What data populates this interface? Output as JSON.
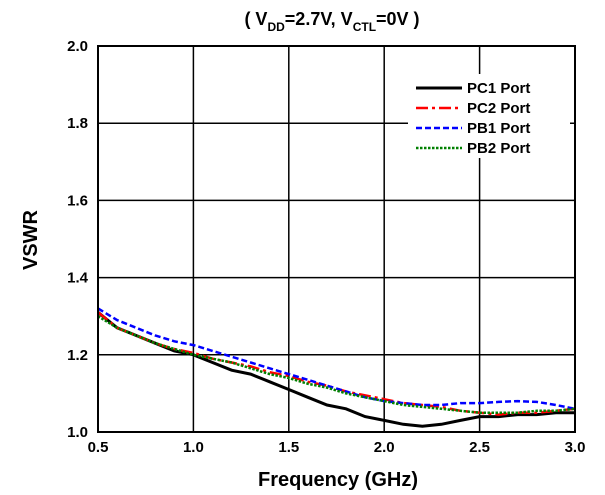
{
  "chart_data": {
    "type": "line",
    "title": {
      "prefix": "( V",
      "sub1": "DD",
      "mid": "=2.7V, V",
      "sub2": "CTL",
      "suffix": "=0V )"
    },
    "xlabel": "Frequency (GHz)",
    "ylabel": "VSWR",
    "xlim": [
      0.5,
      3.0
    ],
    "ylim": [
      1.0,
      2.0
    ],
    "xticks": [
      "0.5",
      "1.0",
      "1.5",
      "2.0",
      "2.5",
      "3.0"
    ],
    "yticks": [
      "1.0",
      "1.2",
      "1.4",
      "1.6",
      "1.8",
      "2.0"
    ],
    "grid": true,
    "legend_position": "top-right",
    "series": [
      {
        "name": "PC1 Port",
        "color": "#000000",
        "style": "solid",
        "x": [
          0.5,
          0.6,
          0.7,
          0.8,
          0.9,
          1.0,
          1.1,
          1.2,
          1.3,
          1.4,
          1.5,
          1.6,
          1.7,
          1.8,
          1.9,
          2.0,
          2.1,
          2.2,
          2.3,
          2.4,
          2.5,
          2.6,
          2.7,
          2.8,
          2.9,
          3.0
        ],
        "y": [
          1.31,
          1.27,
          1.25,
          1.23,
          1.21,
          1.2,
          1.18,
          1.16,
          1.15,
          1.13,
          1.11,
          1.09,
          1.07,
          1.06,
          1.04,
          1.03,
          1.02,
          1.015,
          1.02,
          1.03,
          1.04,
          1.04,
          1.045,
          1.045,
          1.05,
          1.05
        ]
      },
      {
        "name": "PC2 Port",
        "color": "#ff0000",
        "style": "dashdot",
        "x": [
          0.5,
          0.6,
          0.7,
          0.8,
          0.9,
          1.0,
          1.1,
          1.2,
          1.3,
          1.4,
          1.5,
          1.6,
          1.7,
          1.8,
          1.9,
          2.0,
          2.1,
          2.2,
          2.3,
          2.4,
          2.5,
          2.6,
          2.7,
          2.8,
          2.9,
          3.0
        ],
        "y": [
          1.31,
          1.27,
          1.25,
          1.23,
          1.215,
          1.205,
          1.19,
          1.18,
          1.17,
          1.155,
          1.145,
          1.13,
          1.12,
          1.105,
          1.095,
          1.085,
          1.075,
          1.07,
          1.065,
          1.055,
          1.05,
          1.045,
          1.05,
          1.05,
          1.055,
          1.06
        ]
      },
      {
        "name": "PB1 Port",
        "color": "#0000ff",
        "style": "dash",
        "x": [
          0.5,
          0.6,
          0.7,
          0.8,
          0.9,
          1.0,
          1.1,
          1.2,
          1.3,
          1.4,
          1.5,
          1.6,
          1.7,
          1.8,
          1.9,
          2.0,
          2.1,
          2.2,
          2.3,
          2.4,
          2.5,
          2.6,
          2.7,
          2.8,
          2.9,
          3.0
        ],
        "y": [
          1.32,
          1.29,
          1.27,
          1.25,
          1.235,
          1.225,
          1.21,
          1.195,
          1.18,
          1.165,
          1.15,
          1.135,
          1.12,
          1.105,
          1.09,
          1.08,
          1.075,
          1.07,
          1.07,
          1.075,
          1.075,
          1.078,
          1.08,
          1.078,
          1.07,
          1.06
        ]
      },
      {
        "name": "PB2 Port",
        "color": "#008000",
        "style": "dot",
        "x": [
          0.5,
          0.6,
          0.7,
          0.8,
          0.9,
          1.0,
          1.1,
          1.2,
          1.3,
          1.4,
          1.5,
          1.6,
          1.7,
          1.8,
          1.9,
          2.0,
          2.1,
          2.2,
          2.3,
          2.4,
          2.5,
          2.6,
          2.7,
          2.8,
          2.9,
          3.0
        ],
        "y": [
          1.3,
          1.27,
          1.25,
          1.23,
          1.215,
          1.2,
          1.19,
          1.18,
          1.165,
          1.15,
          1.14,
          1.125,
          1.115,
          1.1,
          1.09,
          1.08,
          1.07,
          1.065,
          1.06,
          1.055,
          1.05,
          1.05,
          1.05,
          1.055,
          1.055,
          1.06
        ]
      }
    ]
  }
}
